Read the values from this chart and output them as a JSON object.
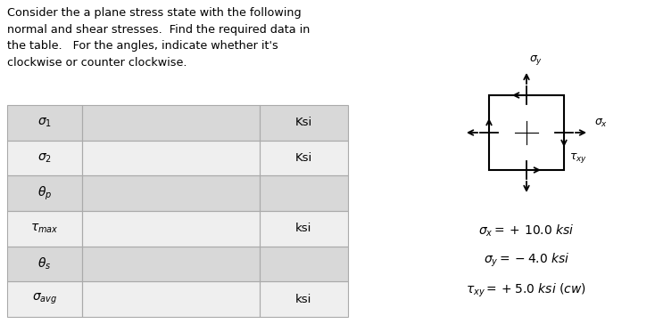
{
  "title_text": "Consider the a plane stress state with the following\nnormal and shear stresses.  Find the required data in\nthe table.   For the angles, indicate whether it's\nclockwise or counter clockwise.",
  "table_rows": [
    {
      "label": "$\\sigma_1$",
      "unit": "Ksi",
      "shaded": true
    },
    {
      "label": "$\\sigma_2$",
      "unit": "Ksi",
      "shaded": false
    },
    {
      "label": "$\\theta_p$",
      "unit": "",
      "shaded": true
    },
    {
      "label": "$\\tau_{max}$",
      "unit": "ksi",
      "shaded": false
    },
    {
      "label": "$\\theta_s$",
      "unit": "",
      "shaded": true
    },
    {
      "label": "$\\sigma_{avg}$",
      "unit": "ksi",
      "shaded": false
    }
  ],
  "stress_lines": [
    "$\\sigma_x = +10.0\\ ksi$",
    "$\\sigma_y = -4.0\\ ksi$",
    "$\\tau_{xy} = +5.0\\ ksi\\ (cw)$"
  ],
  "bg_color": "#ffffff",
  "shaded_color": "#d8d8d8",
  "unshaded_color": "#efefef",
  "border_color": "#aaaaaa",
  "text_color": "#000000"
}
